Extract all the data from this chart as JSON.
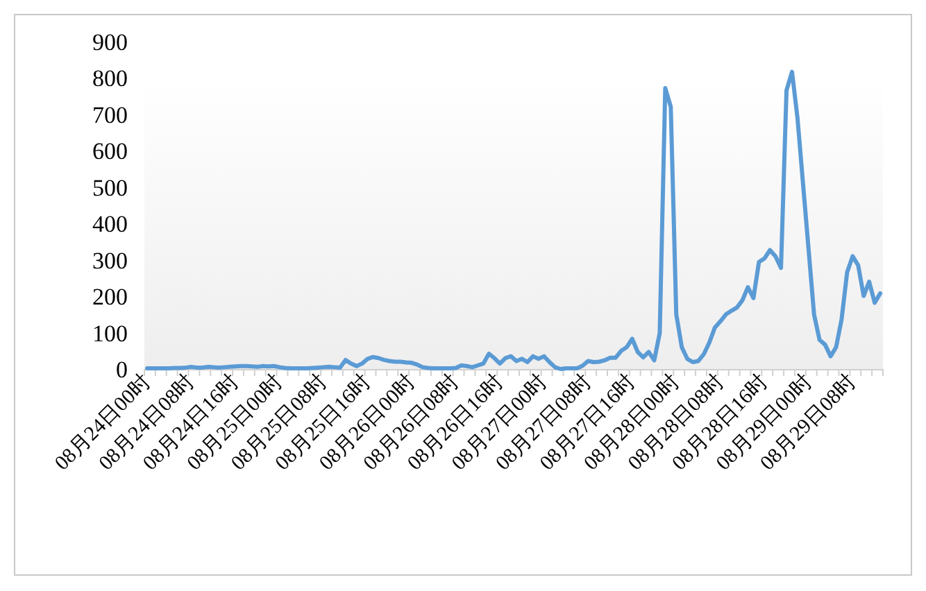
{
  "chart_data": {
    "type": "line",
    "categories": [
      "08月24日00时",
      null,
      null,
      null,
      null,
      null,
      null,
      null,
      "08月24日08时",
      null,
      null,
      null,
      null,
      null,
      null,
      null,
      "08月24日16时",
      null,
      null,
      null,
      null,
      null,
      null,
      null,
      "08月25日00时",
      null,
      null,
      null,
      null,
      null,
      null,
      null,
      "08月25日08时",
      null,
      null,
      null,
      null,
      null,
      null,
      null,
      "08月25日16时",
      null,
      null,
      null,
      null,
      null,
      null,
      null,
      "08月26日00时",
      null,
      null,
      null,
      null,
      null,
      null,
      null,
      "08月26日08时",
      null,
      null,
      null,
      null,
      null,
      null,
      null,
      "08月26日16时",
      null,
      null,
      null,
      null,
      null,
      null,
      null,
      "08月27日00时",
      null,
      null,
      null,
      null,
      null,
      null,
      null,
      "08月27日08时",
      null,
      null,
      null,
      null,
      null,
      null,
      null,
      "08月27日16时",
      null,
      null,
      null,
      null,
      null,
      null,
      null,
      "08月28日00时",
      null,
      null,
      null,
      null,
      null,
      null,
      null,
      "08月28日08时",
      null,
      null,
      null,
      null,
      null,
      null,
      null,
      "08月28日16时",
      null,
      null,
      null,
      null,
      null,
      null,
      null,
      "08月29日00时",
      null,
      null,
      null,
      null,
      null,
      null,
      null,
      "08月29日08时",
      null,
      null,
      null,
      null,
      null
    ],
    "values": [
      2,
      2,
      2,
      2,
      2,
      3,
      3,
      4,
      6,
      4,
      4,
      6,
      5,
      4,
      5,
      6,
      7,
      8,
      8,
      7,
      6,
      8,
      7,
      8,
      5,
      3,
      2,
      2,
      2,
      2,
      3,
      4,
      5,
      6,
      5,
      4,
      25,
      15,
      8,
      15,
      28,
      33,
      30,
      25,
      22,
      20,
      20,
      18,
      17,
      12,
      5,
      3,
      2,
      2,
      2,
      2,
      3,
      10,
      8,
      5,
      10,
      15,
      42,
      30,
      15,
      30,
      35,
      22,
      28,
      19,
      35,
      28,
      35,
      19,
      5,
      0,
      2,
      2,
      2,
      9,
      22,
      19,
      20,
      24,
      31,
      31,
      50,
      60,
      83,
      47,
      32,
      47,
      24,
      99,
      772,
      721,
      150,
      60,
      28,
      19,
      22,
      41,
      73,
      114,
      131,
      150,
      160,
      169,
      189,
      225,
      195,
      294,
      304,
      327,
      310,
      278,
      766,
      817,
      689,
      509,
      330,
      150,
      80,
      67,
      35,
      60,
      137,
      266,
      310,
      285,
      201,
      240,
      182,
      208
    ],
    "color": "#5b9bd5",
    "ylim": [
      0,
      900
    ],
    "yticks": [
      0,
      100,
      200,
      300,
      400,
      500,
      600,
      700,
      800,
      900
    ]
  }
}
